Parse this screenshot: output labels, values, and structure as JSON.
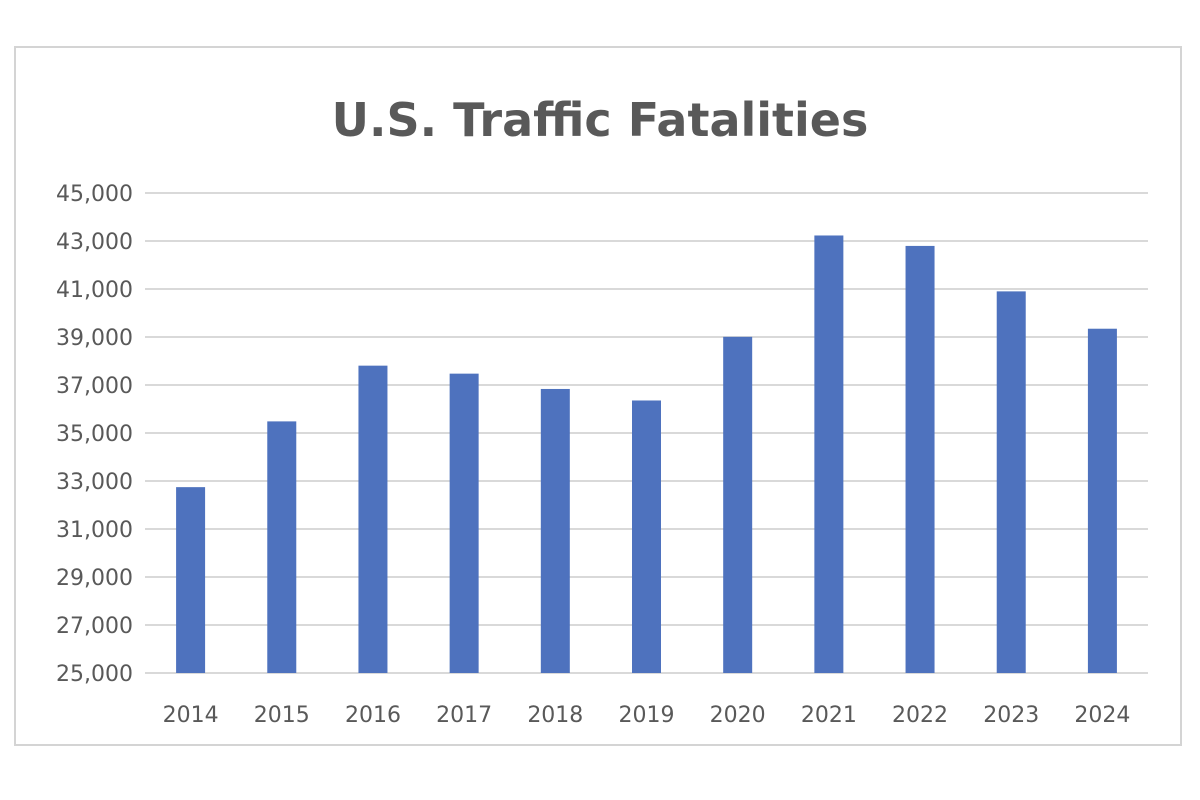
{
  "chart_data": {
    "type": "bar",
    "title": "U.S. Traffic Fatalities",
    "xlabel": "",
    "ylabel": "",
    "categories": [
      "2014",
      "2015",
      "2016",
      "2017",
      "2018",
      "2019",
      "2020",
      "2021",
      "2022",
      "2023",
      "2024"
    ],
    "values": [
      32744,
      35484,
      37806,
      37473,
      36835,
      36355,
      39007,
      43230,
      42795,
      40901,
      39345
    ],
    "ylim": [
      25000,
      45000
    ],
    "yticks": [
      25000,
      27000,
      29000,
      31000,
      33000,
      35000,
      37000,
      39000,
      41000,
      43000,
      45000
    ],
    "ytick_labels": [
      "25,000",
      "27,000",
      "29,000",
      "31,000",
      "33,000",
      "35,000",
      "37,000",
      "39,000",
      "41,000",
      "43,000",
      "45,000"
    ],
    "grid": true,
    "legend": "none",
    "colors": {
      "bar": "#4E72BE",
      "gridline": "#D9D9D9",
      "text": "#595959",
      "frame": "#D4D4D4"
    }
  }
}
